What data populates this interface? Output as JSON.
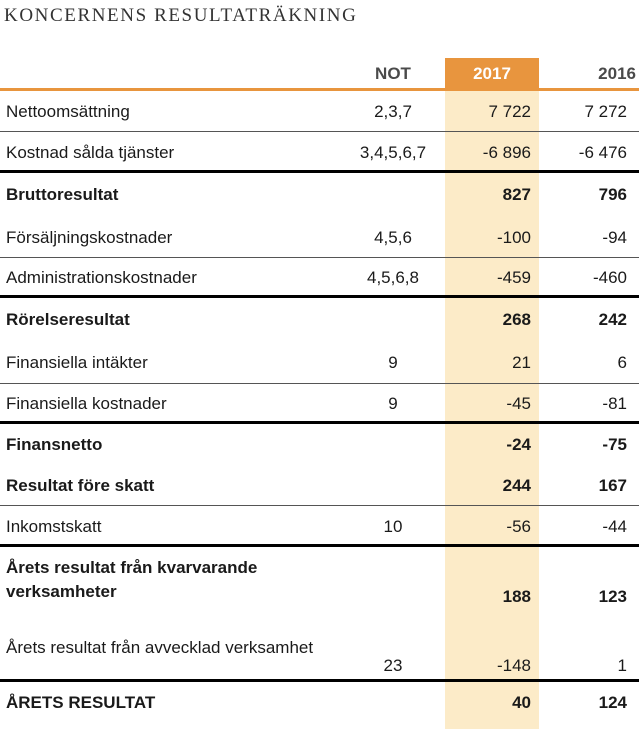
{
  "title": "KONCERNENS RESULTATRÄKNING",
  "header": {
    "note": "NOT",
    "year_current": "2017",
    "year_previous": "2016"
  },
  "colors": {
    "accent": "#e8953e",
    "highlight": "#fcebc8"
  },
  "rows": [
    {
      "label": "Nettoomsättning",
      "note": "2,3,7",
      "v2017": "7 722",
      "v2016": "7 272"
    },
    {
      "label": "Kostnad sålda tjänster",
      "note": "3,4,5,6,7",
      "v2017": "-6 896",
      "v2016": "-6 476"
    },
    {
      "label": "Bruttoresultat",
      "note": "",
      "v2017": "827",
      "v2016": "796"
    },
    {
      "label": "Försäljningskostnader",
      "note": "4,5,6",
      "v2017": "-100",
      "v2016": "-94"
    },
    {
      "label": "Administrationskostnader",
      "note": "4,5,6,8",
      "v2017": "-459",
      "v2016": "-460"
    },
    {
      "label": "Rörelseresultat",
      "note": "",
      "v2017": "268",
      "v2016": "242"
    },
    {
      "label": "Finansiella intäkter",
      "note": "9",
      "v2017": "21",
      "v2016": "6"
    },
    {
      "label": "Finansiella kostnader",
      "note": "9",
      "v2017": "-45",
      "v2016": "-81"
    },
    {
      "label": "Finansnetto",
      "note": "",
      "v2017": "-24",
      "v2016": "-75"
    },
    {
      "label": "Resultat före skatt",
      "note": "",
      "v2017": "244",
      "v2016": "167"
    },
    {
      "label": "Inkomstskatt",
      "note": "10",
      "v2017": "-56",
      "v2016": "-44"
    },
    {
      "label": "Årets resultat från kvarvarande verksamheter",
      "note": "",
      "v2017": "188",
      "v2016": "123"
    },
    {
      "label": "Årets resultat från avvecklad verksamhet",
      "note": "23",
      "v2017": "-148",
      "v2016": "1"
    },
    {
      "label": "ÅRETS RESULTAT",
      "note": "",
      "v2017": "40",
      "v2016": "124"
    }
  ]
}
